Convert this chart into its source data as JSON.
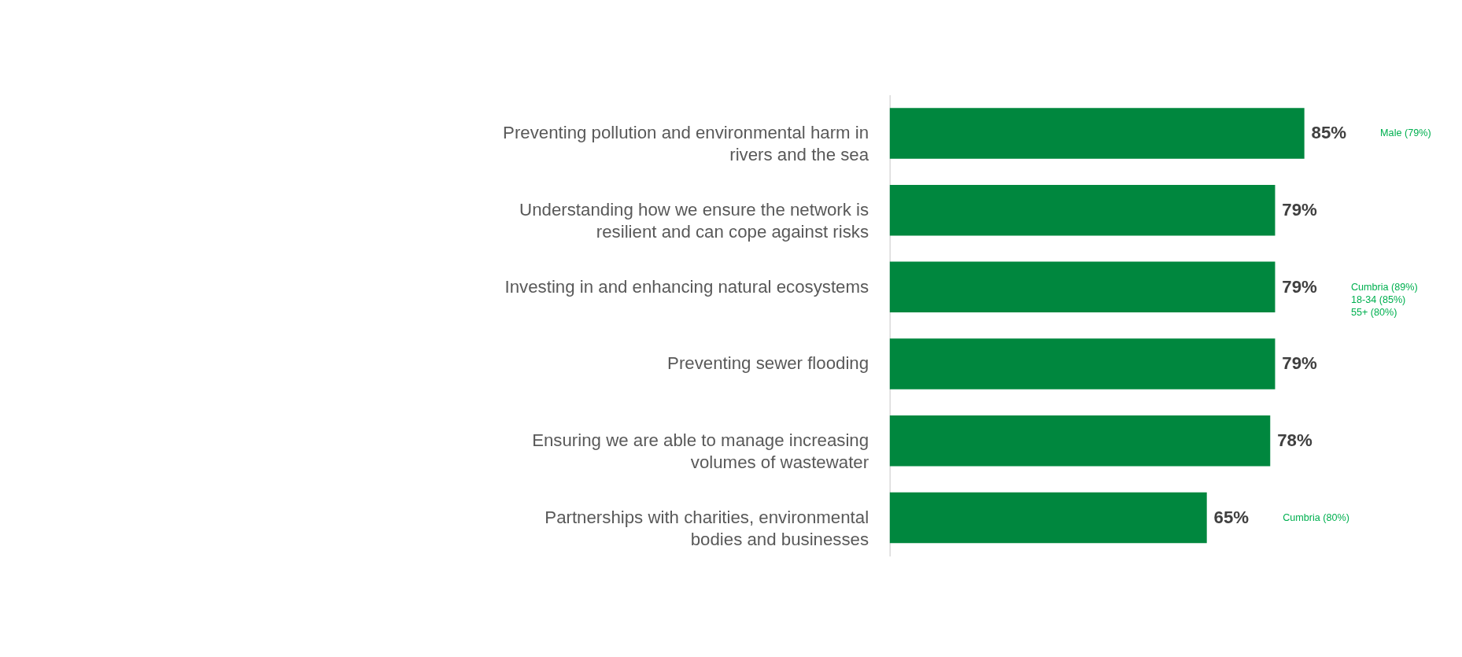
{
  "chart_data": {
    "type": "bar",
    "orientation": "horizontal",
    "data_labels": true,
    "grid": false,
    "categories": [
      "Preventing pollution and environmental harm in rivers and the sea",
      "Understanding how we ensure the network is resilient and can cope against risks",
      "Investing in and enhancing natural ecosystems",
      "Preventing sewer flooding",
      "Ensuring we are able to manage increasing volumes of wastewater",
      "Partnerships with charities, environmental bodies and businesses"
    ],
    "values": [
      85,
      79,
      79,
      79,
      78,
      65
    ],
    "value_labels": [
      "85%",
      "79%",
      "79%",
      "79%",
      "78%",
      "65%"
    ],
    "color": "#00873e",
    "annotations": [
      "Male (79%)",
      "Cumbria (89%)\n18-34 (85%)\n55+ (80%)",
      "Cumbria (80%)"
    ]
  }
}
